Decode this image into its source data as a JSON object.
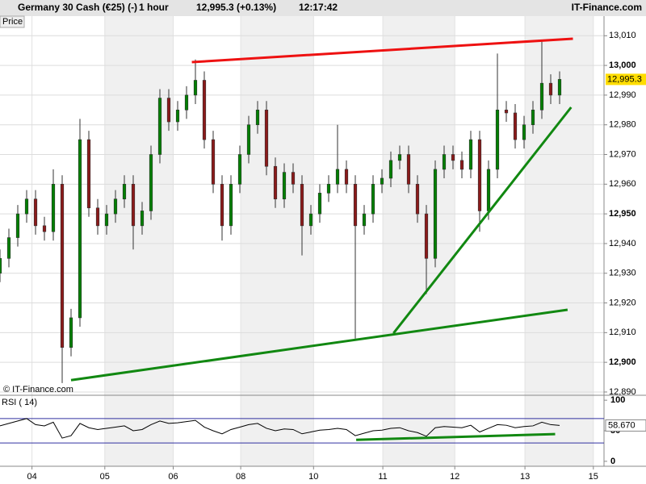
{
  "chart_data": {
    "type": "candlestick",
    "title": "Germany 30 Cash (€25) (-)",
    "interval": "1 hour",
    "quote": "12,995.3 (+0.13%)",
    "time": "12:17:42",
    "brand": "IT-Finance.com",
    "panel_label": "Price",
    "copyright": "© IT-Finance.com",
    "up_color": "#008000",
    "down_color": "#8b1a1a",
    "x": [
      0,
      1,
      2,
      3,
      4,
      5,
      6,
      7,
      8,
      9,
      10,
      11,
      12,
      13,
      14,
      15,
      16,
      17,
      18,
      19,
      20,
      21,
      22,
      23,
      24,
      25,
      26,
      27,
      28,
      29,
      30,
      31,
      32,
      33,
      34,
      35,
      36,
      37,
      38,
      39,
      40,
      41,
      42,
      43,
      44,
      45,
      46,
      47,
      48,
      49,
      50,
      51,
      52,
      53,
      54,
      55,
      56,
      57,
      58,
      59,
      60,
      61,
      62,
      63
    ],
    "open": [
      12930,
      12935,
      12942,
      12950,
      12955,
      12946,
      12944,
      12960,
      12905,
      12915,
      12975,
      12952,
      12946,
      12950,
      12955,
      12960,
      12946,
      12951,
      12970,
      12989,
      12981,
      12985,
      12990,
      12995,
      12975,
      12960,
      12946,
      12960,
      12970,
      12980,
      12985,
      12966,
      12955,
      12964,
      12960,
      12946,
      12950,
      12957,
      12960,
      12965,
      12960,
      12946,
      12950,
      12960,
      12962,
      12968,
      12970,
      12960,
      12950,
      12935,
      12965,
      12970,
      12968,
      12965,
      12975,
      12951,
      12965,
      12985,
      12984,
      12975,
      12980,
      12985,
      12994,
      12990
    ],
    "high": [
      12938,
      12945,
      12953,
      12958,
      12958,
      12949,
      12965,
      12963,
      12918,
      12982,
      12978,
      12955,
      12953,
      12958,
      12963,
      12963,
      12954,
      12973,
      12992,
      12992,
      12988,
      12993,
      13002,
      12998,
      12978,
      12963,
      12963,
      12973,
      12983,
      12988,
      12988,
      12969,
      12967,
      12967,
      12963,
      12953,
      12960,
      12963,
      12980,
      12968,
      12963,
      12953,
      12963,
      12965,
      12971,
      12973,
      12973,
      12963,
      12953,
      12968,
      12973,
      12973,
      12971,
      12978,
      12978,
      12968,
      13004,
      12988,
      12987,
      12983,
      12988,
      13008,
      12997,
      12998
    ],
    "low": [
      12927,
      12932,
      12939,
      12947,
      12943,
      12941,
      12941,
      12893,
      12902,
      12912,
      12949,
      12943,
      12943,
      12947,
      12952,
      12938,
      12943,
      12948,
      12967,
      12978,
      12978,
      12982,
      12987,
      12972,
      12957,
      12941,
      12943,
      12957,
      12967,
      12977,
      12963,
      12952,
      12952,
      12957,
      12936,
      12943,
      12947,
      12954,
      12957,
      12957,
      12908,
      12943,
      12947,
      12957,
      12959,
      12965,
      12957,
      12947,
      12923,
      12932,
      12962,
      12965,
      12962,
      12962,
      12944,
      12948,
      12962,
      12981,
      12972,
      12972,
      12977,
      12982,
      12987,
      12987
    ],
    "close": [
      12935,
      12942,
      12950,
      12955,
      12946,
      12944,
      12960,
      12905,
      12915,
      12975,
      12952,
      12946,
      12950,
      12955,
      12960,
      12946,
      12951,
      12970,
      12989,
      12981,
      12985,
      12990,
      12995,
      12975,
      12960,
      12946,
      12960,
      12970,
      12980,
      12985,
      12966,
      12955,
      12964,
      12960,
      12946,
      12950,
      12957,
      12960,
      12965,
      12960,
      12946,
      12950,
      12960,
      12962,
      12968,
      12970,
      12960,
      12950,
      12935,
      12965,
      12970,
      12968,
      12965,
      12975,
      12951,
      12965,
      12985,
      12984,
      12975,
      12980,
      12985,
      12994,
      12990,
      12995.3
    ],
    "last_price": {
      "value": 12995.3,
      "label": "12,995.3"
    },
    "xlim": [
      0,
      68
    ],
    "xticks": [
      {
        "value": 3.6,
        "label": "04"
      },
      {
        "value": 11.8,
        "label": "05"
      },
      {
        "value": 19.5,
        "label": "06"
      },
      {
        "value": 27.1,
        "label": "08"
      },
      {
        "value": 35.3,
        "label": "10"
      },
      {
        "value": 43.1,
        "label": "11"
      },
      {
        "value": 51.2,
        "label": "12"
      },
      {
        "value": 59.1,
        "label": "13"
      },
      {
        "value": 66.8,
        "label": "15"
      }
    ],
    "ylim": [
      12888.9,
      13016.6
    ],
    "yticks": [
      {
        "value": 12890,
        "label": "12,890"
      },
      {
        "value": 12900,
        "label": "12,900"
      },
      {
        "value": 12910,
        "label": "12,910"
      },
      {
        "value": 12920,
        "label": "12,920"
      },
      {
        "value": 12930,
        "label": "12,930"
      },
      {
        "value": 12940,
        "label": "12,940"
      },
      {
        "value": 12950,
        "label": "12,950"
      },
      {
        "value": 12960,
        "label": "12,960"
      },
      {
        "value": 12970,
        "label": "12,970"
      },
      {
        "value": 12980,
        "label": "12,980"
      },
      {
        "value": 12990,
        "label": "12,990"
      },
      {
        "value": 13000,
        "label": "13,000"
      },
      {
        "value": 13010,
        "label": "13,010"
      }
    ],
    "grid": true,
    "trendlines": [
      {
        "color": "#ee1111",
        "x": [
          21.6,
          64.5
        ],
        "y": [
          13001.1,
          13009
        ]
      },
      {
        "color": "#118811",
        "x": [
          8,
          63.9
        ],
        "y": [
          12894,
          12917.7
        ]
      },
      {
        "color": "#118811",
        "x": [
          44.3,
          64.3
        ],
        "y": [
          12909.8,
          12985.9
        ]
      }
    ],
    "rsi": {
      "label": "RSI ( 14)",
      "color": "#000000",
      "level_color": "#3030a0",
      "values": [
        58,
        62,
        66,
        70,
        60,
        58,
        64,
        38,
        42,
        62,
        55,
        52,
        54,
        56,
        58,
        50,
        52,
        60,
        66,
        62,
        63,
        65,
        67,
        56,
        50,
        45,
        52,
        56,
        60,
        62,
        54,
        50,
        53,
        52,
        45,
        48,
        51,
        52,
        54,
        52,
        42,
        46,
        50,
        51,
        54,
        55,
        50,
        47,
        41,
        55,
        57,
        56,
        55,
        59,
        48,
        54,
        60,
        59,
        55,
        57,
        58,
        64,
        60,
        58.67
      ],
      "last": {
        "value": 58.67,
        "label": "58.670"
      },
      "ylim": [
        -8.1,
        108.1
      ],
      "yticks": [
        0,
        50,
        100
      ],
      "levels": [
        30,
        70
      ],
      "trendline": {
        "color": "#118811",
        "x": [
          40.1,
          62.5
        ],
        "y": [
          35.1,
          44.6
        ]
      }
    }
  }
}
